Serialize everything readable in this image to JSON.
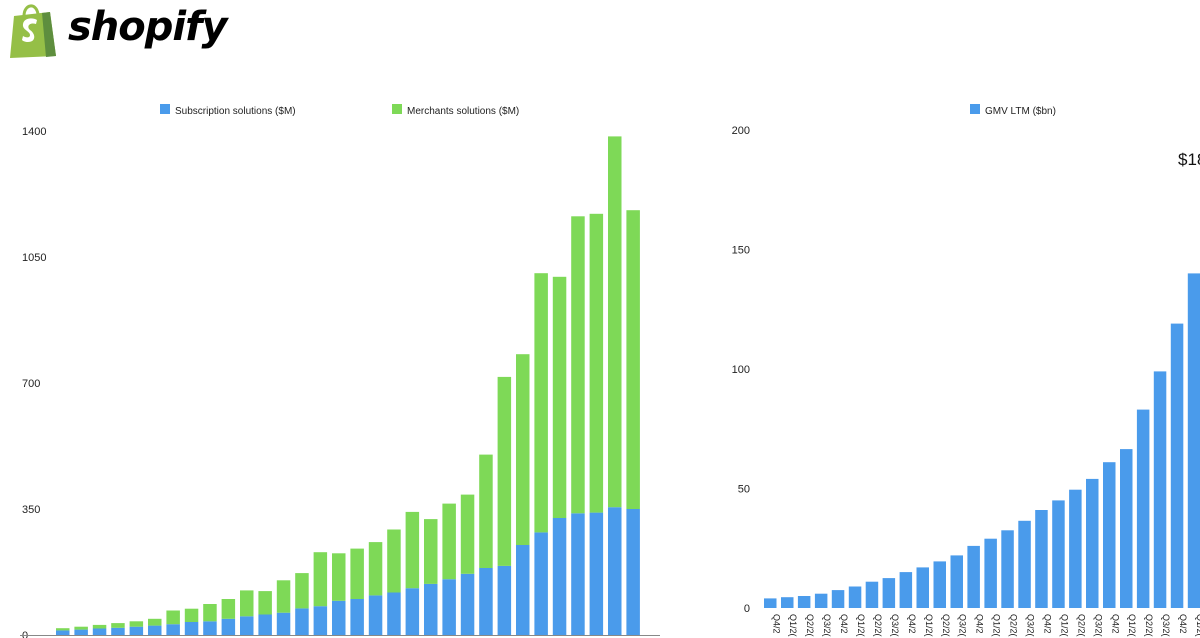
{
  "header": {
    "logo_text": "shopify",
    "logo_icon": "shopping-bag-icon",
    "brand_color": "#95BF47"
  },
  "chart_data": [
    {
      "type": "bar",
      "stacked": true,
      "legend_placement": "top",
      "grid": false,
      "ylim": [
        0,
        1400
      ],
      "yticks": [
        0,
        350,
        700,
        1050,
        1400
      ],
      "series": [
        {
          "name": "Subscription solutions ($M)",
          "color": "#4A9BEB",
          "values": [
            13,
            15,
            18,
            20,
            23,
            26,
            30,
            36,
            38,
            45,
            52,
            57,
            62,
            74,
            80,
            95,
            100,
            110,
            118,
            130,
            142,
            155,
            170,
            186,
            192,
            250,
            285,
            325,
            338,
            340,
            355,
            350
          ]
        },
        {
          "name": "Merchants solutions ($M)",
          "color": "#7ED957",
          "values": [
            6,
            8,
            10,
            13,
            15,
            19,
            38,
            37,
            48,
            55,
            72,
            65,
            90,
            98,
            150,
            132,
            140,
            148,
            175,
            212,
            180,
            210,
            220,
            315,
            525,
            530,
            720,
            670,
            825,
            830,
            1030,
            830
          ]
        }
      ]
    },
    {
      "type": "bar",
      "legend_placement": "top",
      "grid": false,
      "ylim": [
        0,
        200
      ],
      "yticks": [
        0,
        50,
        100,
        150,
        200
      ],
      "annotation": "$18",
      "series": [
        {
          "name": "GMV LTM ($bn)",
          "color": "#4A9BEB",
          "values": [
            4,
            4.5,
            5,
            6,
            7.5,
            9,
            11,
            12.5,
            15,
            17,
            19.5,
            22,
            26,
            29,
            32.5,
            36.5,
            41,
            45,
            49.5,
            54,
            61,
            66.5,
            83,
            99,
            119,
            140
          ]
        }
      ],
      "categories": [
        "Q4/2",
        "Q1/2(",
        "Q2/2(",
        "Q3/2(",
        "Q4/2",
        "Q1/2(",
        "Q2/2(",
        "Q3/2(",
        "Q4/2",
        "Q1/2(",
        "Q2/2(",
        "Q3/2(",
        "Q4/2",
        "Q1/2(",
        "Q2/2(",
        "Q3/2(",
        "Q4/2",
        "Q1/2(",
        "Q2/2(",
        "Q3/2(",
        "Q4/2",
        "Q1/2(",
        "Q2/2(",
        "Q3/2(",
        "Q4/2",
        "Q1/2("
      ]
    }
  ]
}
